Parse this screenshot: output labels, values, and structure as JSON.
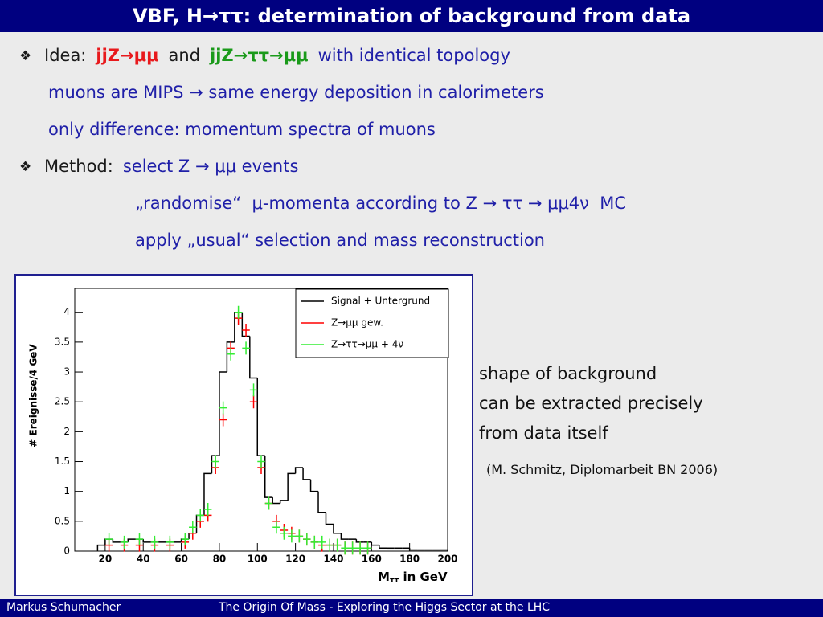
{
  "header": {
    "title": "VBF, H→ττ: determination of background from data"
  },
  "bullets": [
    {
      "segments": [
        {
          "text": "Idea:",
          "color": "#1a1a1a"
        },
        {
          "text": "jjZ→μμ",
          "color": "#e8191c",
          "bold": true
        },
        {
          "text": "and",
          "color": "#1a1a1a"
        },
        {
          "text": "jjZ→ττ→μμ",
          "color": "#1a9a1a",
          "bold": true
        },
        {
          "text": "with identical topology",
          "color": "#1f1fa8"
        }
      ]
    },
    {
      "segments": [
        {
          "text": "muons are MIPS → same energy deposition in calorimeters",
          "color": "#1f1fa8"
        }
      ]
    },
    {
      "segments": [
        {
          "text": "only difference: momentum spectra of muons",
          "color": "#1f1fa8"
        }
      ]
    },
    {
      "segments": [
        {
          "text": "Method:",
          "color": "#1a1a1a"
        },
        {
          "text": "select Z → μμ events",
          "color": "#1f1fa8"
        }
      ]
    },
    {
      "segments": [
        {
          "text": "„randomise“  μ-momenta according to Z → ττ → μμ4ν  MC",
          "color": "#1f1fa8"
        }
      ]
    },
    {
      "segments": [
        {
          "text": "apply „usual“ selection and mass reconstruction",
          "color": "#1f1fa8"
        }
      ]
    }
  ],
  "side_text": [
    "shape of background",
    "can be extracted precisely",
    "from data itself"
  ],
  "citation": "(M. Schmitz, Diplomarbeit BN 2006)",
  "footer": {
    "author": "Markus  Schumacher",
    "talk": "The Origin Of Mass - Exploring the Higgs Sector at the LHC"
  },
  "chart_data": {
    "type": "histogram",
    "y_label": "# Ereignisse/4 GeV",
    "x_label": {
      "main": "M",
      "sub": "ττ",
      "unit": "in GeV"
    },
    "xlim": [
      4,
      200
    ],
    "ylim": [
      0,
      4.4
    ],
    "xticks": [
      20,
      40,
      60,
      80,
      100,
      120,
      140,
      160,
      180,
      200
    ],
    "yticks": [
      0,
      0.5,
      1,
      1.5,
      2,
      2.5,
      3,
      3.5,
      4
    ],
    "series": [
      {
        "name": "Signal + Untergrund",
        "color": "#000000",
        "style": "step",
        "bins": [
          16,
          20,
          24,
          28,
          32,
          36,
          40,
          44,
          48,
          52,
          56,
          60,
          64,
          68,
          72,
          76,
          80,
          84,
          88,
          92,
          96,
          100,
          104,
          108,
          112,
          116,
          120,
          124,
          128,
          132,
          136,
          140,
          144,
          148,
          152,
          156,
          160,
          164,
          168,
          172,
          176,
          180,
          184,
          188,
          192,
          196,
          200
        ],
        "values": [
          0.1,
          0.2,
          0.15,
          0.15,
          0.2,
          0.2,
          0.15,
          0.15,
          0.15,
          0.15,
          0.15,
          0.2,
          0.3,
          0.6,
          1.3,
          1.6,
          3.0,
          3.5,
          4.0,
          3.6,
          2.9,
          1.6,
          0.9,
          0.8,
          0.85,
          1.3,
          1.4,
          1.2,
          1.0,
          0.65,
          0.45,
          0.3,
          0.2,
          0.2,
          0.15,
          0.15,
          0.1,
          0.05,
          0.05,
          0.05,
          0.05,
          0.02,
          0.02,
          0.02,
          0.02,
          0.02
        ]
      },
      {
        "name": "Z→μμ gew.",
        "color": "#ff0000",
        "style": "cross",
        "x": [
          22,
          30,
          38,
          46,
          54,
          62,
          66,
          70,
          74,
          78,
          82,
          86,
          90,
          94,
          98,
          102,
          106,
          110,
          114,
          118,
          122,
          126,
          130,
          134,
          138,
          142,
          146,
          150,
          154,
          158
        ],
        "values": [
          0.1,
          0.1,
          0.1,
          0.1,
          0.1,
          0.15,
          0.3,
          0.5,
          0.6,
          1.4,
          2.2,
          3.4,
          3.9,
          3.7,
          2.5,
          1.4,
          0.8,
          0.5,
          0.35,
          0.3,
          0.25,
          0.2,
          0.15,
          0.1,
          0.1,
          0.1,
          0.05,
          0.05,
          0.05,
          0.05
        ]
      },
      {
        "name": "Z→ττ→μμ + 4ν",
        "color": "#33ee33",
        "style": "cross",
        "x": [
          22,
          30,
          38,
          46,
          54,
          62,
          66,
          70,
          74,
          78,
          82,
          86,
          90,
          94,
          98,
          102,
          106,
          110,
          114,
          118,
          122,
          126,
          130,
          134,
          138,
          142,
          146,
          150,
          154,
          158
        ],
        "values": [
          0.2,
          0.15,
          0.2,
          0.15,
          0.15,
          0.2,
          0.4,
          0.6,
          0.7,
          1.5,
          2.4,
          3.3,
          4.0,
          3.4,
          2.7,
          1.5,
          0.8,
          0.4,
          0.3,
          0.25,
          0.25,
          0.2,
          0.15,
          0.15,
          0.1,
          0.1,
          0.05,
          0.05,
          0.05,
          0.05
        ]
      }
    ]
  }
}
